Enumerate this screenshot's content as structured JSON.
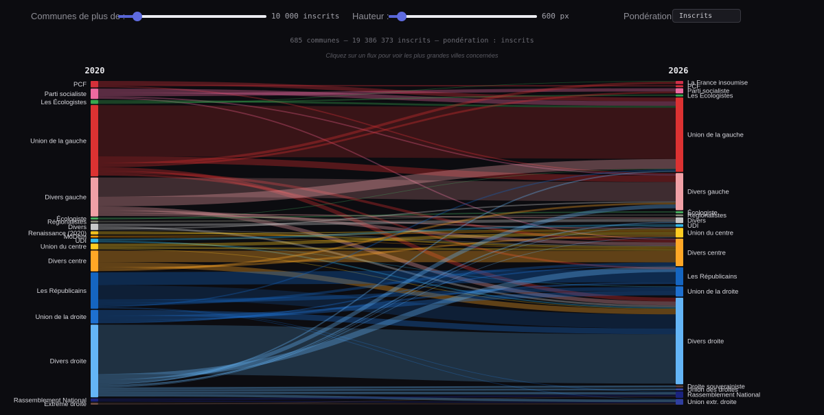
{
  "controls": {
    "communes_label": "Communes de plus de :",
    "communes_value": "10 000 inscrits",
    "communes_fraction": 0.13,
    "height_label": "Hauteur :",
    "height_value": "600 px",
    "height_fraction": 0.09,
    "weighting_label": "Pondération :",
    "weighting_value": "Inscrits"
  },
  "summary": "685 communes — 19 386 373 inscrits — pondération : inscrits",
  "hint": "Cliquez sur un flux pour voir les plus grandes villes concernées",
  "chart_data": {
    "type": "sankey",
    "columns": [
      "2020",
      "2026"
    ],
    "left_nodes": [
      {
        "id": "L_PCF",
        "label": "PCF",
        "value": 1.0,
        "color": "#d6303a"
      },
      {
        "id": "L_PS",
        "label": "Parti socialiste",
        "value": 1.6,
        "color": "#ee6aa0"
      },
      {
        "id": "L_ECO",
        "label": "Les Écologistes",
        "value": 0.6,
        "color": "#38a850"
      },
      {
        "id": "L_UG",
        "label": "Union de la gauche",
        "value": 11.0,
        "color": "#dc3232"
      },
      {
        "id": "L_DG",
        "label": "Divers gauche",
        "value": 6.0,
        "color": "#f0a0a6"
      },
      {
        "id": "L_ECOL",
        "label": "Écologiste",
        "value": 0.3,
        "color": "#48b060"
      },
      {
        "id": "L_REG",
        "label": "Régionalistes",
        "value": 0.3,
        "color": "#8a8a7a"
      },
      {
        "id": "L_DIV",
        "label": "Divers",
        "value": 1.0,
        "color": "#c8c8c8"
      },
      {
        "id": "L_REN",
        "label": "Renaissance (2020)",
        "value": 0.5,
        "color": "#f0c020"
      },
      {
        "id": "L_MOD",
        "label": "MoDem",
        "value": 0.3,
        "color": "#ff9800"
      },
      {
        "id": "L_UDI",
        "label": "UDI",
        "value": 0.6,
        "color": "#34b8e8"
      },
      {
        "id": "L_UC",
        "label": "Union du centre",
        "value": 0.9,
        "color": "#ffcc22"
      },
      {
        "id": "L_DC",
        "label": "Divers centre",
        "value": 3.2,
        "color": "#ffa726"
      },
      {
        "id": "L_LR",
        "label": "Les Républicains",
        "value": 5.6,
        "color": "#1565c0"
      },
      {
        "id": "L_UD",
        "label": "Union de la droite",
        "value": 2.1,
        "color": "#1e70d0"
      },
      {
        "id": "L_DD",
        "label": "Divers droite",
        "value": 11.2,
        "color": "#64b5f6"
      },
      {
        "id": "L_RN",
        "label": "Rassemblement National",
        "value": 0.5,
        "color": "#1a237e"
      },
      {
        "id": "L_XD",
        "label": "Extrême droite",
        "value": 0.3,
        "color": "#6d4c41"
      }
    ],
    "right_nodes": [
      {
        "id": "R_LFI",
        "label": "La France insoumise",
        "value": 0.5,
        "color": "#d0304a"
      },
      {
        "id": "R_PCF",
        "label": "PCF",
        "value": 0.3,
        "color": "#d6303a"
      },
      {
        "id": "R_PS",
        "label": "Parti socialiste",
        "value": 0.8,
        "color": "#ee6aa0"
      },
      {
        "id": "R_ECO",
        "label": "Les Écologistes",
        "value": 0.3,
        "color": "#38a850"
      },
      {
        "id": "R_UG",
        "label": "Union de la gauche",
        "value": 11.6,
        "color": "#dc3232"
      },
      {
        "id": "R_DG",
        "label": "Divers gauche",
        "value": 5.8,
        "color": "#f0a0a6"
      },
      {
        "id": "R_ECOL",
        "label": "Écologiste",
        "value": 0.3,
        "color": "#48b060"
      },
      {
        "id": "R_REG",
        "label": "Régionalistes",
        "value": 0.3,
        "color": "#8a8a7a"
      },
      {
        "id": "R_DIV",
        "label": "Divers",
        "value": 0.9,
        "color": "#c8c8c8"
      },
      {
        "id": "R_UDI",
        "label": "UDI",
        "value": 0.4,
        "color": "#34b8e8"
      },
      {
        "id": "R_UC",
        "label": "Union du centre",
        "value": 1.5,
        "color": "#ffcc22"
      },
      {
        "id": "R_DC",
        "label": "Divers centre",
        "value": 4.3,
        "color": "#ffa726"
      },
      {
        "id": "R_LR",
        "label": "Les Républicains",
        "value": 2.8,
        "color": "#1565c0"
      },
      {
        "id": "R_UD",
        "label": "Union de la droite",
        "value": 1.6,
        "color": "#1e70d0"
      },
      {
        "id": "R_DD",
        "label": "Divers droite",
        "value": 13.5,
        "color": "#64b5f6"
      },
      {
        "id": "R_DS",
        "label": "Droite souverainiste",
        "value": 0.3,
        "color": "#5d4037"
      },
      {
        "id": "R_UDD",
        "label": "Union des droites",
        "value": 0.3,
        "color": "#3949ab"
      },
      {
        "id": "R_RN",
        "label": "Rassemblement National",
        "value": 1.0,
        "color": "#1a237e"
      },
      {
        "id": "R_UXD",
        "label": "Union extr. droite",
        "value": 0.9,
        "color": "#303f9f"
      }
    ],
    "flows": [
      {
        "source": "L_PCF",
        "target": "R_UG",
        "value": 0.6
      },
      {
        "source": "L_PCF",
        "target": "R_PCF",
        "value": 0.2
      },
      {
        "source": "L_PCF",
        "target": "R_DG",
        "value": 0.2
      },
      {
        "source": "L_PS",
        "target": "R_UG",
        "value": 0.7
      },
      {
        "source": "L_PS",
        "target": "R_PS",
        "value": 0.5
      },
      {
        "source": "L_PS",
        "target": "R_DG",
        "value": 0.2
      },
      {
        "source": "L_PS",
        "target": "R_DC",
        "value": 0.2
      },
      {
        "source": "L_ECO",
        "target": "R_UG",
        "value": 0.3
      },
      {
        "source": "L_ECO",
        "target": "R_ECO",
        "value": 0.2
      },
      {
        "source": "L_ECO",
        "target": "R_LFI",
        "value": 0.1
      },
      {
        "source": "L_UG",
        "target": "R_UG",
        "value": 8.0
      },
      {
        "source": "L_UG",
        "target": "R_DG",
        "value": 1.0
      },
      {
        "source": "L_UG",
        "target": "R_LFI",
        "value": 0.4
      },
      {
        "source": "L_UG",
        "target": "R_PS",
        "value": 0.3
      },
      {
        "source": "L_UG",
        "target": "R_DD",
        "value": 0.6
      },
      {
        "source": "L_UG",
        "target": "R_DC",
        "value": 0.4
      },
      {
        "source": "L_UG",
        "target": "R_LR",
        "value": 0.3
      },
      {
        "source": "L_DG",
        "target": "R_DG",
        "value": 3.0
      },
      {
        "source": "L_DG",
        "target": "R_UG",
        "value": 1.5
      },
      {
        "source": "L_DG",
        "target": "R_DD",
        "value": 0.6
      },
      {
        "source": "L_DG",
        "target": "R_DC",
        "value": 0.5
      },
      {
        "source": "L_DG",
        "target": "R_DIV",
        "value": 0.2
      },
      {
        "source": "L_DG",
        "target": "R_UC",
        "value": 0.2
      },
      {
        "source": "L_ECOL",
        "target": "R_ECOL",
        "value": 0.2
      },
      {
        "source": "L_ECOL",
        "target": "R_UG",
        "value": 0.1
      },
      {
        "source": "L_REG",
        "target": "R_REG",
        "value": 0.2
      },
      {
        "source": "L_REG",
        "target": "R_DIV",
        "value": 0.1
      },
      {
        "source": "L_DIV",
        "target": "R_DIV",
        "value": 0.4
      },
      {
        "source": "L_DIV",
        "target": "R_DD",
        "value": 0.3
      },
      {
        "source": "L_DIV",
        "target": "R_DG",
        "value": 0.2
      },
      {
        "source": "L_DIV",
        "target": "R_DC",
        "value": 0.1
      },
      {
        "source": "L_REN",
        "target": "R_DC",
        "value": 0.3
      },
      {
        "source": "L_REN",
        "target": "R_UC",
        "value": 0.2
      },
      {
        "source": "L_MOD",
        "target": "R_UC",
        "value": 0.2
      },
      {
        "source": "L_MOD",
        "target": "R_DC",
        "value": 0.1
      },
      {
        "source": "L_UDI",
        "target": "R_UDI",
        "value": 0.3
      },
      {
        "source": "L_UDI",
        "target": "R_DD",
        "value": 0.2
      },
      {
        "source": "L_UDI",
        "target": "R_UD",
        "value": 0.1
      },
      {
        "source": "L_UC",
        "target": "R_UC",
        "value": 0.5
      },
      {
        "source": "L_UC",
        "target": "R_DC",
        "value": 0.3
      },
      {
        "source": "L_UC",
        "target": "R_DD",
        "value": 0.1
      },
      {
        "source": "L_DC",
        "target": "R_DC",
        "value": 1.8
      },
      {
        "source": "L_DC",
        "target": "R_DD",
        "value": 0.8
      },
      {
        "source": "L_DC",
        "target": "R_UC",
        "value": 0.3
      },
      {
        "source": "L_DC",
        "target": "R_DG",
        "value": 0.3
      },
      {
        "source": "L_LR",
        "target": "R_LR",
        "value": 2.0
      },
      {
        "source": "L_LR",
        "target": "R_DD",
        "value": 2.2
      },
      {
        "source": "L_LR",
        "target": "R_UD",
        "value": 0.6
      },
      {
        "source": "L_LR",
        "target": "R_DC",
        "value": 0.4
      },
      {
        "source": "L_LR",
        "target": "R_UG",
        "value": 0.2
      },
      {
        "source": "L_LR",
        "target": "R_RN",
        "value": 0.1
      },
      {
        "source": "L_LR",
        "target": "R_UXD",
        "value": 0.1
      },
      {
        "source": "L_UD",
        "target": "R_DD",
        "value": 0.9
      },
      {
        "source": "L_UD",
        "target": "R_UD",
        "value": 0.7
      },
      {
        "source": "L_UD",
        "target": "R_LR",
        "value": 0.3
      },
      {
        "source": "L_UD",
        "target": "R_DC",
        "value": 0.2
      },
      {
        "source": "L_DD",
        "target": "R_DD",
        "value": 7.7
      },
      {
        "source": "L_DD",
        "target": "R_DC",
        "value": 0.9
      },
      {
        "source": "L_DD",
        "target": "R_DG",
        "value": 0.6
      },
      {
        "source": "L_DD",
        "target": "R_UG",
        "value": 0.2
      },
      {
        "source": "L_DD",
        "target": "R_UC",
        "value": 0.1
      },
      {
        "source": "L_DD",
        "target": "R_DIV",
        "value": 0.2
      },
      {
        "source": "L_DD",
        "target": "R_UDI",
        "value": 0.1
      },
      {
        "source": "L_DD",
        "target": "R_DS",
        "value": 0.3
      },
      {
        "source": "L_DD",
        "target": "R_UDD",
        "value": 0.3
      },
      {
        "source": "L_DD",
        "target": "R_RN",
        "value": 0.4
      },
      {
        "source": "L_DD",
        "target": "R_UXD",
        "value": 0.4
      },
      {
        "source": "L_RN",
        "target": "R_RN",
        "value": 0.3
      },
      {
        "source": "L_RN",
        "target": "R_UXD",
        "value": 0.2
      },
      {
        "source": "L_XD",
        "target": "R_UXD",
        "value": 0.2
      },
      {
        "source": "L_XD",
        "target": "R_RN",
        "value": 0.1
      }
    ]
  }
}
